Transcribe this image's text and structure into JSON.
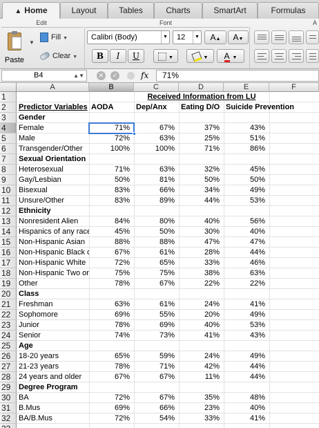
{
  "tabs": [
    {
      "label": "Home",
      "active": true
    },
    {
      "label": "Layout"
    },
    {
      "label": "Tables"
    },
    {
      "label": "Charts"
    },
    {
      "label": "SmartArt"
    },
    {
      "label": "Formulas"
    }
  ],
  "ribbon": {
    "edit_group": "Edit",
    "font_group": "Font",
    "paste_label": "Paste",
    "fill_label": "Fill",
    "clear_label": "Clear",
    "font_name": "Calibri (Body)",
    "font_size": "12",
    "grow_label": "A",
    "shrink_label": "A",
    "bold": "B",
    "italic": "I",
    "underline": "U",
    "font_color_label": "A",
    "overflow_group": "A",
    "font_color": "#e02020",
    "highlight_color": "#f2e400"
  },
  "formula_bar": {
    "cell_ref": "B4",
    "formula": "71%",
    "fx": "fx",
    "cancel": "✕",
    "confirm": "✓"
  },
  "grid": {
    "columns": [
      "A",
      "B",
      "C",
      "D",
      "E",
      "F"
    ],
    "selected_cell": "B4",
    "rows": [
      {
        "n": "1",
        "cells": [
          "",
          "",
          "Received Information from LU",
          "",
          "",
          ""
        ]
      },
      {
        "n": "2",
        "cells": [
          "Predictor Variables",
          "AODA",
          "Dep/Anx",
          "Eating D/O",
          "Suicide Prevention",
          ""
        ]
      },
      {
        "n": "3",
        "cells": [
          "Gender",
          "",
          "",
          "",
          "",
          ""
        ]
      },
      {
        "n": "4",
        "cells": [
          "Female",
          "71%",
          "67%",
          "37%",
          "43%",
          ""
        ]
      },
      {
        "n": "5",
        "cells": [
          "Male",
          "72%",
          "63%",
          "25%",
          "51%",
          ""
        ]
      },
      {
        "n": "6",
        "cells": [
          "Transgender/Other",
          "100%",
          "100%",
          "71%",
          "86%",
          ""
        ]
      },
      {
        "n": "7",
        "cells": [
          "Sexual Orientation",
          "",
          "",
          "",
          "",
          ""
        ]
      },
      {
        "n": "8",
        "cells": [
          "Heterosexual",
          "71%",
          "63%",
          "32%",
          "45%",
          ""
        ]
      },
      {
        "n": "9",
        "cells": [
          "Gay/Lesbian",
          "50%",
          "81%",
          "50%",
          "50%",
          ""
        ]
      },
      {
        "n": "10",
        "cells": [
          "Bisexual",
          "83%",
          "66%",
          "34%",
          "49%",
          ""
        ]
      },
      {
        "n": "11",
        "cells": [
          "Unsure/Other",
          "83%",
          "89%",
          "44%",
          "53%",
          ""
        ]
      },
      {
        "n": "12",
        "cells": [
          "Ethnicity",
          "",
          "",
          "",
          "",
          ""
        ]
      },
      {
        "n": "13",
        "cells": [
          "Nonresident Alien",
          "84%",
          "80%",
          "40%",
          "56%",
          ""
        ]
      },
      {
        "n": "14",
        "cells": [
          "Hispanics of any race",
          "45%",
          "50%",
          "30%",
          "40%",
          ""
        ]
      },
      {
        "n": "15",
        "cells": [
          "Non-Hispanic Asian",
          "88%",
          "88%",
          "47%",
          "47%",
          ""
        ]
      },
      {
        "n": "16",
        "cells": [
          "Non-Hispanic Black o",
          "67%",
          "61%",
          "28%",
          "44%",
          ""
        ]
      },
      {
        "n": "17",
        "cells": [
          "Non-Hispanic White",
          "72%",
          "65%",
          "33%",
          "46%",
          ""
        ]
      },
      {
        "n": "18",
        "cells": [
          "Non-Hispanic Two or",
          "75%",
          "75%",
          "38%",
          "63%",
          ""
        ]
      },
      {
        "n": "19",
        "cells": [
          "Other",
          "78%",
          "67%",
          "22%",
          "22%",
          ""
        ]
      },
      {
        "n": "20",
        "cells": [
          "Class",
          "",
          "",
          "",
          "",
          ""
        ]
      },
      {
        "n": "21",
        "cells": [
          "Freshman",
          "63%",
          "61%",
          "24%",
          "41%",
          ""
        ]
      },
      {
        "n": "22",
        "cells": [
          "Sophomore",
          "69%",
          "55%",
          "20%",
          "49%",
          ""
        ]
      },
      {
        "n": "23",
        "cells": [
          "Junior",
          "78%",
          "69%",
          "40%",
          "53%",
          ""
        ]
      },
      {
        "n": "24",
        "cells": [
          "Senior",
          "74%",
          "73%",
          "41%",
          "43%",
          ""
        ]
      },
      {
        "n": "25",
        "cells": [
          "Age",
          "",
          "",
          "",
          "",
          ""
        ]
      },
      {
        "n": "26",
        "cells": [
          "18-20 years",
          "65%",
          "59%",
          "24%",
          "49%",
          ""
        ]
      },
      {
        "n": "27",
        "cells": [
          "21-23 years",
          "78%",
          "71%",
          "42%",
          "44%",
          ""
        ]
      },
      {
        "n": "28",
        "cells": [
          "24 years and older",
          "67%",
          "67%",
          "11%",
          "44%",
          ""
        ]
      },
      {
        "n": "29",
        "cells": [
          "Degree Program",
          "",
          "",
          "",
          "",
          ""
        ]
      },
      {
        "n": "30",
        "cells": [
          "BA",
          "72%",
          "67%",
          "35%",
          "48%",
          ""
        ]
      },
      {
        "n": "31",
        "cells": [
          "B.Mus",
          "69%",
          "66%",
          "23%",
          "40%",
          ""
        ]
      },
      {
        "n": "32",
        "cells": [
          "BA/B.Mus",
          "72%",
          "54%",
          "33%",
          "41%",
          ""
        ]
      },
      {
        "n": "33",
        "cells": [
          "",
          "",
          "",
          "",
          "",
          ""
        ]
      }
    ]
  }
}
